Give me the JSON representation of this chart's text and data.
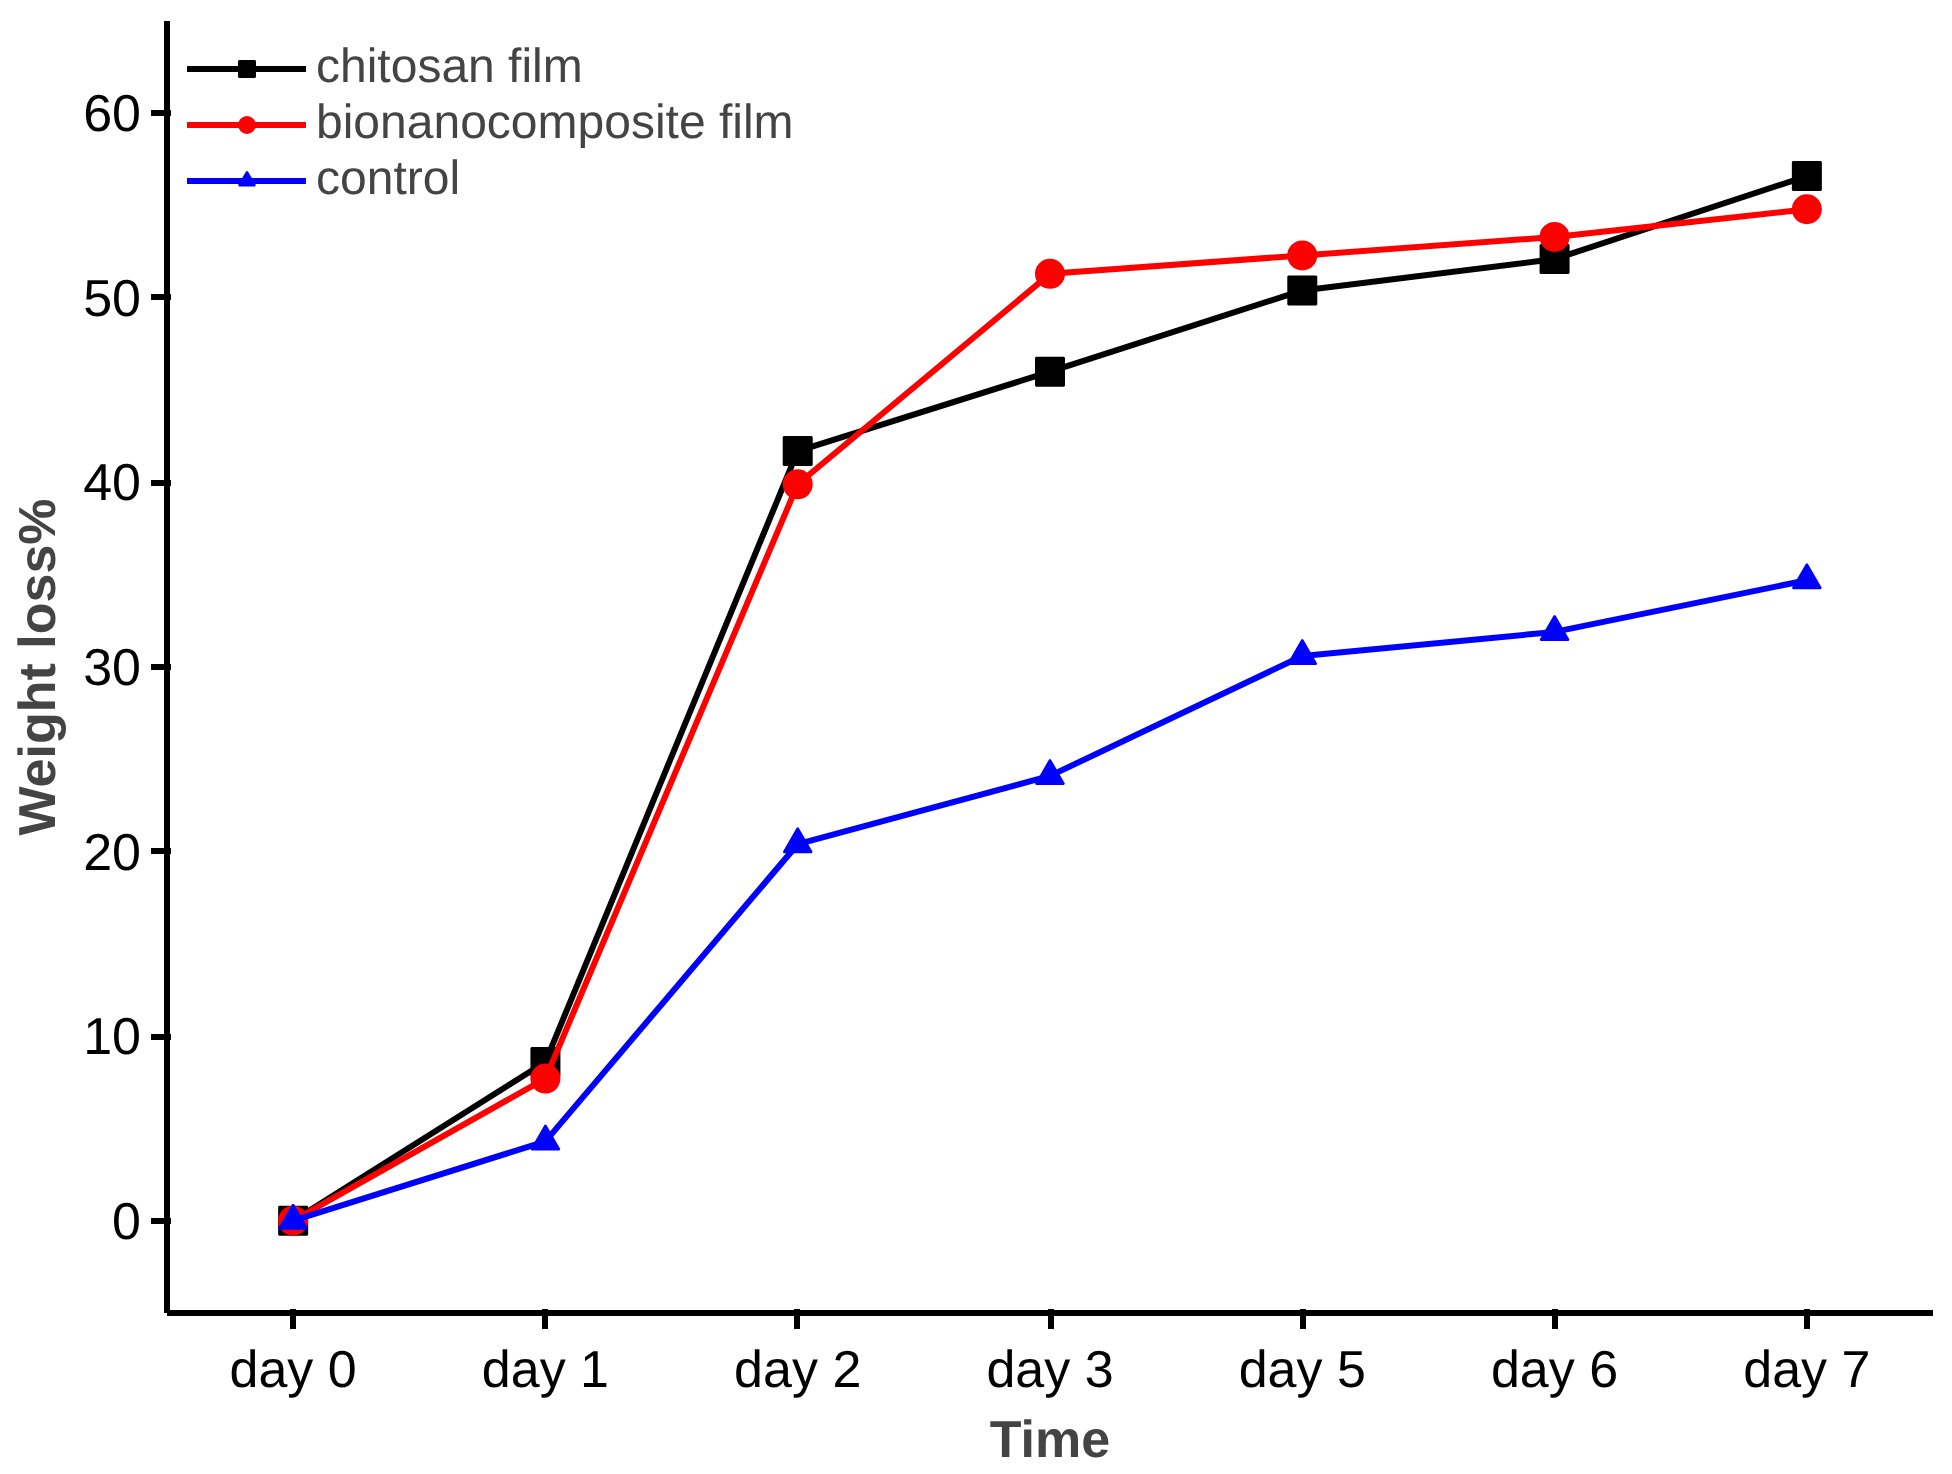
{
  "chart_data": {
    "type": "line",
    "xlabel": "Time",
    "ylabel": "Weight loss%",
    "categories": [
      "day 0",
      "day 1",
      "day 2",
      "day 3",
      "day 5",
      "day 6",
      "day 7"
    ],
    "series": [
      {
        "name": "chitosan film",
        "color": "#000000",
        "marker": "square",
        "values": [
          0,
          8.6,
          41.7,
          46.0,
          50.4,
          52.1,
          56.6
        ]
      },
      {
        "name": "bionanocomposite film",
        "color": "#ff0000",
        "marker": "circle",
        "values": [
          0,
          7.7,
          39.9,
          51.3,
          52.3,
          53.3,
          54.8
        ]
      },
      {
        "name": "control",
        "color": "#0000ff",
        "marker": "triangle",
        "values": [
          0,
          4.3,
          20.4,
          24.1,
          30.6,
          31.9,
          34.7
        ]
      }
    ],
    "ylim": [
      -5,
      65
    ],
    "yticks": [
      0,
      10,
      20,
      30,
      40,
      50,
      60
    ],
    "grid": false,
    "legend": "top left",
    "line_style": "solid"
  }
}
